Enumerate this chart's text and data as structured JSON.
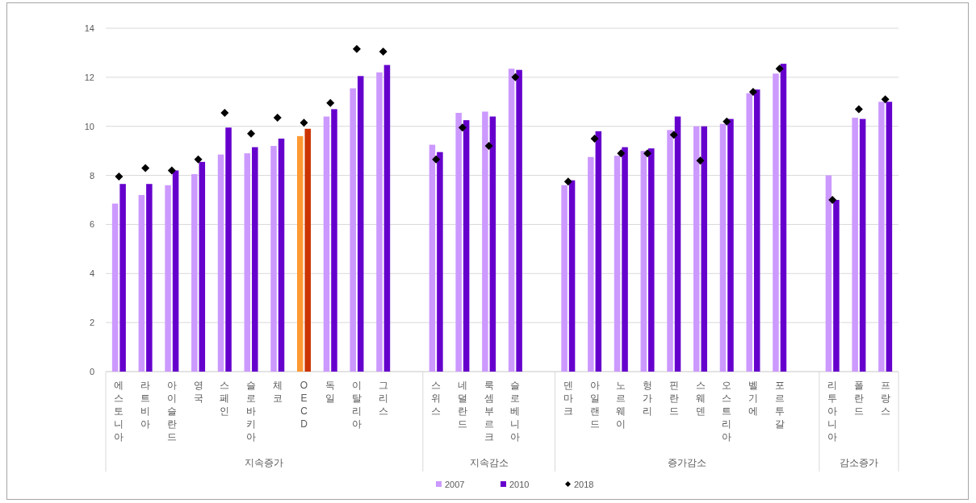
{
  "chart_data": {
    "type": "bar",
    "categories": [
      "에스토니아",
      "라트비아",
      "아이슬란드",
      "영국",
      "스페인",
      "슬로바키아",
      "체코",
      "OECD",
      "독일",
      "이탈리아",
      "그리스",
      null,
      "스위스",
      "네덜란드",
      "룩셈부르크",
      "슬로베니아",
      null,
      "덴마크",
      "아일랜드",
      "노르웨이",
      "헝가리",
      "핀란드",
      "스웨덴",
      "오스트리아",
      "벨기에",
      "포르투갈",
      null,
      "리투아니아",
      "폴란드",
      "프랑스"
    ],
    "series": [
      {
        "name": "2007",
        "type": "bar",
        "color": "#cc99ff",
        "colors": [
          "#cc99ff",
          "#cc99ff",
          "#cc99ff",
          "#cc99ff",
          "#cc99ff",
          "#cc99ff",
          "#cc99ff",
          "#ff9933",
          "#cc99ff",
          "#cc99ff",
          "#cc99ff",
          null,
          "#cc99ff",
          "#cc99ff",
          "#cc99ff",
          "#cc99ff",
          null,
          "#cc99ff",
          "#cc99ff",
          "#cc99ff",
          "#cc99ff",
          "#cc99ff",
          "#cc99ff",
          "#cc99ff",
          "#cc99ff",
          "#cc99ff",
          null,
          "#cc99ff",
          "#cc99ff",
          "#cc99ff"
        ],
        "values": [
          6.85,
          7.2,
          7.6,
          8.05,
          8.85,
          8.9,
          9.2,
          9.6,
          10.4,
          11.55,
          12.2,
          null,
          9.25,
          10.55,
          10.6,
          12.35,
          null,
          7.6,
          8.75,
          8.8,
          9.0,
          9.85,
          10.0,
          10.1,
          11.35,
          12.15,
          null,
          8.0,
          10.35,
          11.0
        ]
      },
      {
        "name": "2010",
        "type": "bar",
        "color": "#6600cc",
        "colors": [
          "#6600cc",
          "#6600cc",
          "#6600cc",
          "#6600cc",
          "#6600cc",
          "#6600cc",
          "#6600cc",
          "#cc3300",
          "#6600cc",
          "#6600cc",
          "#6600cc",
          null,
          "#6600cc",
          "#6600cc",
          "#6600cc",
          "#6600cc",
          null,
          "#6600cc",
          "#6600cc",
          "#6600cc",
          "#6600cc",
          "#6600cc",
          "#6600cc",
          "#6600cc",
          "#6600cc",
          "#6600cc",
          null,
          "#6600cc",
          "#6600cc",
          "#6600cc"
        ],
        "values": [
          7.65,
          7.65,
          8.2,
          8.55,
          9.95,
          9.15,
          9.5,
          9.9,
          10.7,
          12.05,
          12.5,
          null,
          8.95,
          10.25,
          10.4,
          12.3,
          null,
          7.8,
          9.8,
          9.15,
          9.1,
          10.4,
          10.0,
          10.3,
          11.5,
          12.55,
          null,
          7.0,
          10.3,
          11.0
        ]
      },
      {
        "name": "2018",
        "type": "scatter",
        "marker": "diamond",
        "color": "#000000",
        "values": [
          7.95,
          8.3,
          8.2,
          8.65,
          10.55,
          9.7,
          10.35,
          10.15,
          10.95,
          13.15,
          13.05,
          null,
          8.65,
          9.95,
          9.2,
          12.0,
          null,
          7.75,
          9.5,
          8.9,
          8.9,
          9.65,
          8.6,
          10.2,
          11.4,
          12.35,
          null,
          7.0,
          10.7,
          11.1
        ]
      }
    ],
    "ylim": [
      0,
      14
    ],
    "yticks": [
      0,
      2,
      4,
      6,
      8,
      10,
      12,
      14
    ],
    "grid": "y",
    "legend": "bottom",
    "annotations": [
      "지속증가",
      "지속감소",
      "증가감소",
      "감소증가"
    ]
  }
}
